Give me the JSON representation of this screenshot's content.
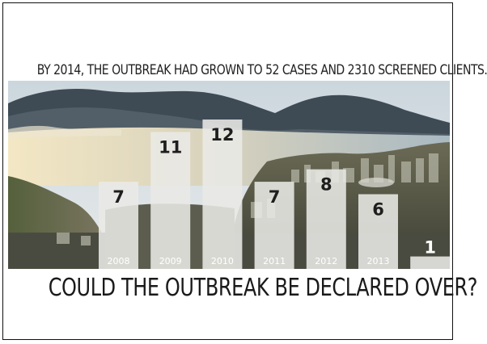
{
  "headline": "BY 2014, THE OUTBREAK HAD GROWN TO 52 CASES AND 2310 SCREENED CLIENTS.",
  "question": "COULD THE OUTBREAK BE DECLARED OVER?",
  "chart_data": {
    "type": "bar",
    "categories": [
      "2008",
      "2009",
      "2010",
      "2011",
      "2012",
      "2013",
      ""
    ],
    "values": [
      7,
      11,
      12,
      7,
      8,
      6,
      1
    ],
    "value_labels": [
      "7",
      "11",
      "12",
      "7",
      "8",
      "6",
      "1"
    ],
    "title": "",
    "xlabel": "",
    "ylabel": "",
    "ylim": [
      0,
      12
    ],
    "grid": false,
    "legend": "none",
    "bar_color": "#e9e9e6",
    "background": "photo of lakeside city with mountains"
  }
}
